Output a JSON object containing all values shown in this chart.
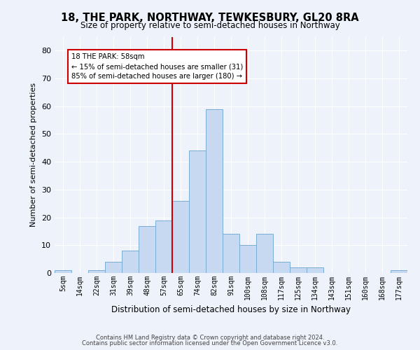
{
  "title": "18, THE PARK, NORTHWAY, TEWKESBURY, GL20 8RA",
  "subtitle": "Size of property relative to semi-detached houses in Northway",
  "xlabel": "Distribution of semi-detached houses by size in Northway",
  "ylabel": "Number of semi-detached properties",
  "bar_color": "#c6d9f0",
  "bar_edge_color": "#7aadd4",
  "bin_labels": [
    "5sqm",
    "14sqm",
    "22sqm",
    "31sqm",
    "39sqm",
    "48sqm",
    "57sqm",
    "65sqm",
    "74sqm",
    "82sqm",
    "91sqm",
    "100sqm",
    "108sqm",
    "117sqm",
    "125sqm",
    "134sqm",
    "143sqm",
    "151sqm",
    "160sqm",
    "168sqm",
    "177sqm"
  ],
  "bar_heights": [
    1,
    0,
    1,
    4,
    8,
    17,
    19,
    26,
    44,
    59,
    14,
    10,
    14,
    4,
    2,
    2,
    0,
    0,
    0,
    0,
    1
  ],
  "vline_x": 6.5,
  "vline_color": "#cc0000",
  "annotation_text": "18 THE PARK: 58sqm\n← 15% of semi-detached houses are smaller (31)\n85% of semi-detached houses are larger (180) →",
  "annotation_box_color": "white",
  "annotation_box_edge": "#cc0000",
  "ylim": [
    0,
    85
  ],
  "yticks": [
    0,
    10,
    20,
    30,
    40,
    50,
    60,
    70,
    80
  ],
  "footer_line1": "Contains HM Land Registry data © Crown copyright and database right 2024.",
  "footer_line2": "Contains public sector information licensed under the Open Government Licence v3.0.",
  "background_color": "#eef2fb",
  "grid_color": "#ffffff",
  "title_fontsize": 10.5,
  "subtitle_fontsize": 8.5
}
